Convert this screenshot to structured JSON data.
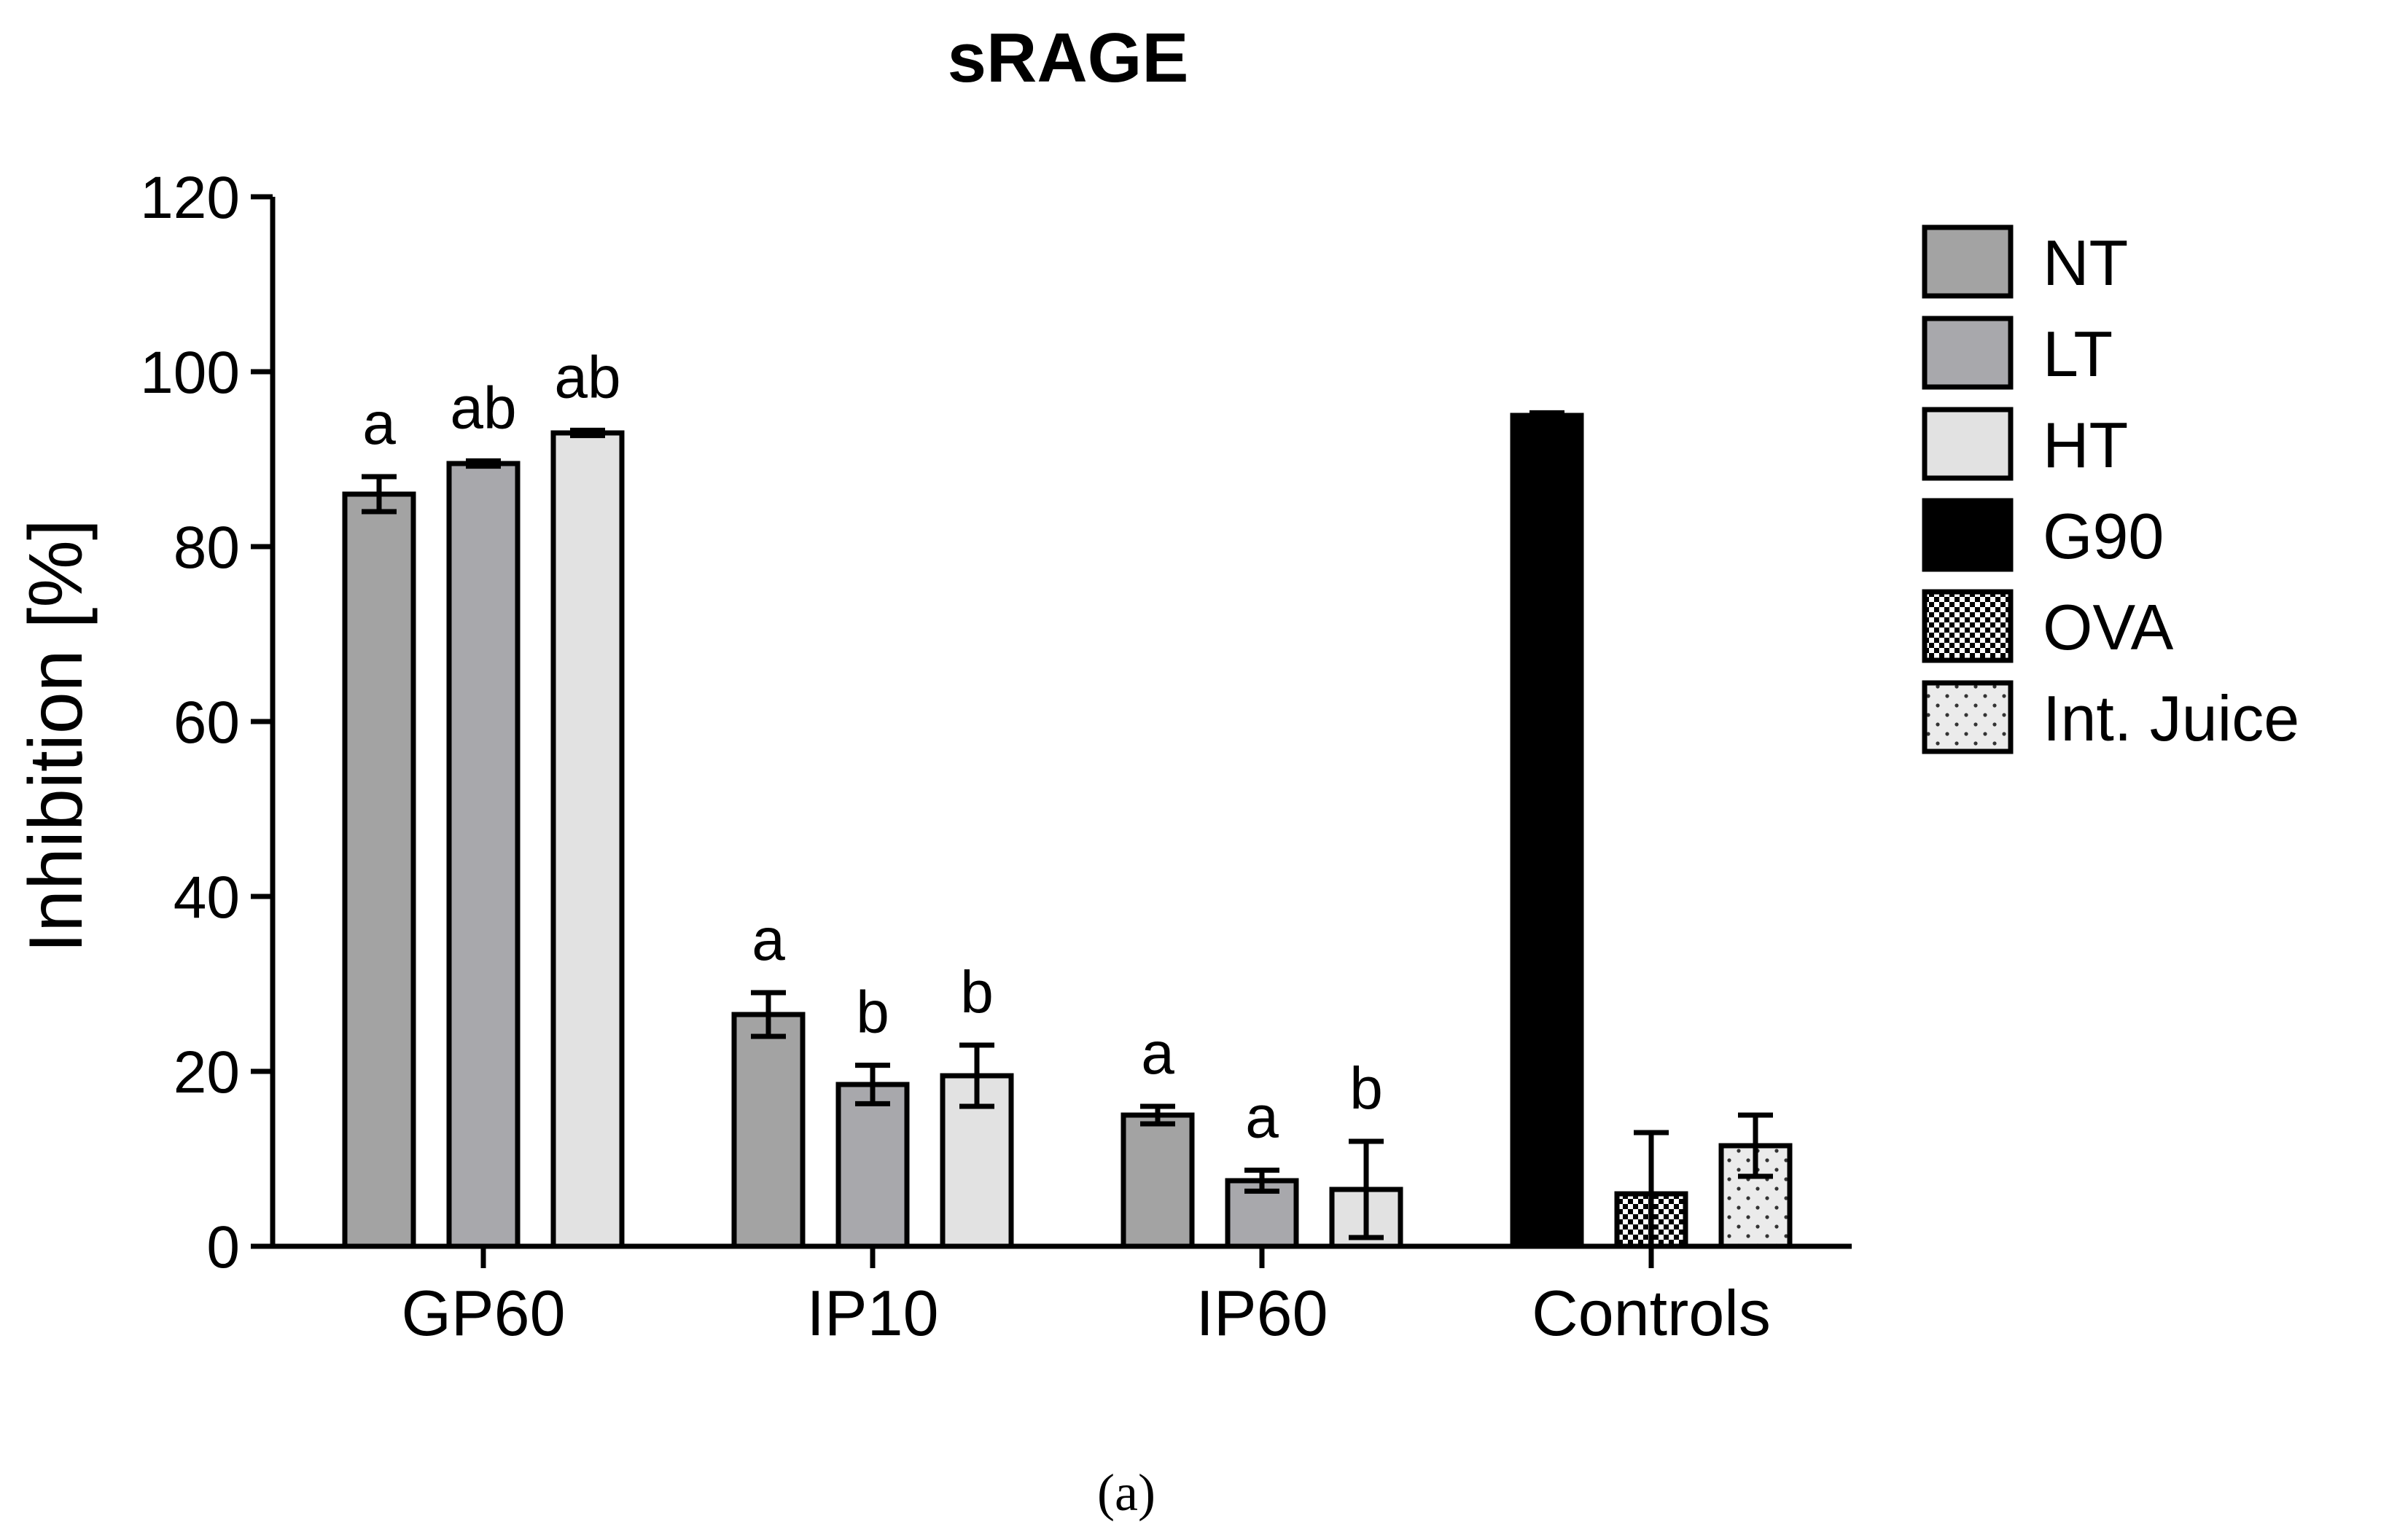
{
  "chart_data": {
    "type": "bar",
    "title": "sRAGE",
    "xlabel": "",
    "ylabel": "Inhibition [%]",
    "ylim": [
      0,
      120
    ],
    "yticks": [
      0,
      20,
      40,
      60,
      80,
      100,
      120
    ],
    "caption": "(a)",
    "legend_position": "right",
    "categories": [
      "GP60",
      "IP10",
      "IP60",
      "Controls"
    ],
    "series": [
      {
        "name": "NT",
        "color": "#a3a3a3",
        "pattern": "solid",
        "values": [
          86,
          26.5,
          15,
          null
        ],
        "errors": [
          2,
          2.5,
          1,
          null
        ],
        "labels": [
          "a",
          "a",
          "a",
          null
        ]
      },
      {
        "name": "LT",
        "color": "#a8a8ac",
        "pattern": "solid",
        "values": [
          89.5,
          18.5,
          7.5,
          null
        ],
        "errors": [
          0.3,
          2.2,
          1.2,
          null
        ],
        "labels": [
          "ab",
          "b",
          "a",
          null
        ]
      },
      {
        "name": "HT",
        "color": "#e2e2e2",
        "pattern": "solid",
        "values": [
          93,
          19.5,
          6.5,
          null
        ],
        "errors": [
          0.3,
          3.5,
          5.5,
          null
        ],
        "labels": [
          "ab",
          "b",
          "b",
          null
        ]
      },
      {
        "name": "G90",
        "color": "#000000",
        "pattern": "solid",
        "values": [
          null,
          null,
          null,
          95
        ],
        "errors": [
          null,
          null,
          null,
          0.3
        ],
        "labels": [
          null,
          null,
          null,
          null
        ]
      },
      {
        "name": "OVA",
        "color": "#ffffff",
        "pattern": "checker",
        "values": [
          null,
          null,
          null,
          6
        ],
        "errors": [
          null,
          null,
          null,
          7
        ],
        "labels": [
          null,
          null,
          null,
          null
        ]
      },
      {
        "name": "Int. Juice",
        "color": "#e6e6e6",
        "pattern": "dots",
        "values": [
          null,
          null,
          null,
          11.5
        ],
        "errors": [
          null,
          null,
          null,
          3.5
        ],
        "labels": [
          null,
          null,
          null,
          null
        ]
      }
    ],
    "bar_groups": [
      {
        "category": "GP60",
        "bars": [
          0,
          1,
          2
        ]
      },
      {
        "category": "IP10",
        "bars": [
          0,
          1,
          2
        ]
      },
      {
        "category": "IP60",
        "bars": [
          0,
          1,
          2
        ]
      },
      {
        "category": "Controls",
        "bars": [
          3,
          4,
          5
        ]
      }
    ]
  }
}
